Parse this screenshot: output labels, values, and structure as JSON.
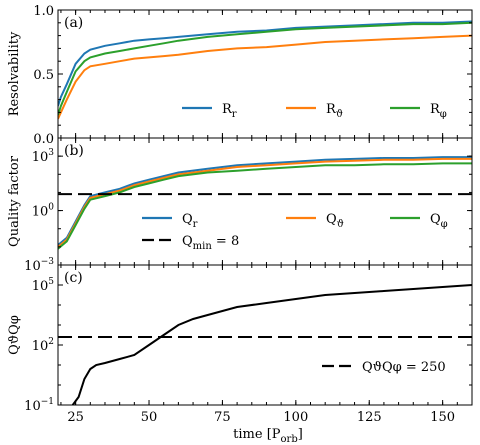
{
  "chart_data": [
    {
      "panel_tag": "(a)",
      "type": "line",
      "ylabel": "Resolvability",
      "xlim": [
        19,
        160
      ],
      "ylim": [
        0.0,
        1.0
      ],
      "yscale": "linear",
      "yticks": [
        0.0,
        0.5,
        1.0
      ],
      "ytick_labels": [
        "0.0",
        "0.5",
        "1.0"
      ],
      "legend_loc": "lower-right",
      "series": [
        {
          "name": "R_r",
          "label": {
            "base": "R",
            "sub": "r"
          },
          "color": "#1f77b4",
          "x": [
            19,
            20,
            22,
            25,
            28,
            30,
            35,
            40,
            45,
            50,
            55,
            60,
            70,
            80,
            90,
            100,
            110,
            120,
            130,
            140,
            150,
            160
          ],
          "y": [
            0.25,
            0.32,
            0.42,
            0.58,
            0.66,
            0.69,
            0.72,
            0.74,
            0.76,
            0.77,
            0.78,
            0.79,
            0.81,
            0.83,
            0.84,
            0.86,
            0.87,
            0.88,
            0.89,
            0.9,
            0.9,
            0.91
          ]
        },
        {
          "name": "R_theta",
          "label": {
            "base": "R",
            "sub": "ϑ"
          },
          "color": "#ff7f0e",
          "x": [
            19,
            20,
            22,
            25,
            28,
            30,
            35,
            40,
            45,
            50,
            55,
            60,
            70,
            80,
            90,
            100,
            110,
            120,
            130,
            140,
            150,
            160
          ],
          "y": [
            0.15,
            0.2,
            0.3,
            0.44,
            0.53,
            0.56,
            0.58,
            0.6,
            0.62,
            0.63,
            0.64,
            0.65,
            0.68,
            0.7,
            0.71,
            0.73,
            0.75,
            0.76,
            0.77,
            0.78,
            0.79,
            0.8
          ]
        },
        {
          "name": "R_phi",
          "label": {
            "base": "R",
            "sub": "φ"
          },
          "color": "#2ca02c",
          "x": [
            19,
            20,
            22,
            25,
            28,
            30,
            35,
            40,
            45,
            50,
            55,
            60,
            70,
            80,
            90,
            100,
            110,
            120,
            130,
            140,
            150,
            160
          ],
          "y": [
            0.18,
            0.25,
            0.36,
            0.52,
            0.6,
            0.63,
            0.66,
            0.68,
            0.7,
            0.72,
            0.74,
            0.76,
            0.79,
            0.81,
            0.83,
            0.85,
            0.86,
            0.87,
            0.88,
            0.89,
            0.89,
            0.9
          ]
        }
      ]
    },
    {
      "panel_tag": "(b)",
      "type": "line",
      "ylabel": "Quality factor",
      "xlim": [
        19,
        160
      ],
      "ylim": [
        -3,
        4
      ],
      "yscale": "log",
      "yticks": [
        -3,
        0,
        3
      ],
      "ytick_labels": [
        {
          "base": "10",
          "exp": "−3"
        },
        {
          "base": "10",
          "exp": "0"
        },
        {
          "base": "10",
          "exp": "3"
        }
      ],
      "legend_loc": "lower-right",
      "series": [
        {
          "name": "Q_r",
          "label": {
            "base": "Q",
            "sub": "r"
          },
          "color": "#1f77b4",
          "x": [
            19,
            22,
            25,
            28,
            30,
            35,
            40,
            45,
            50,
            55,
            60,
            70,
            80,
            90,
            100,
            110,
            120,
            130,
            140,
            150,
            160
          ],
          "y": [
            -1.9,
            -1.5,
            -0.6,
            0.3,
            0.8,
            1.0,
            1.2,
            1.5,
            1.7,
            1.9,
            2.1,
            2.3,
            2.5,
            2.6,
            2.7,
            2.8,
            2.85,
            2.9,
            2.9,
            2.95,
            2.95
          ]
        },
        {
          "name": "Q_theta",
          "label": {
            "base": "Q",
            "sub": "ϑ"
          },
          "color": "#ff7f0e",
          "x": [
            19,
            22,
            25,
            28,
            30,
            35,
            40,
            45,
            50,
            55,
            60,
            70,
            80,
            90,
            100,
            110,
            120,
            130,
            140,
            150,
            160
          ],
          "y": [
            -2.0,
            -1.6,
            -0.7,
            0.2,
            0.7,
            0.9,
            1.1,
            1.4,
            1.6,
            1.8,
            2.0,
            2.2,
            2.4,
            2.5,
            2.6,
            2.7,
            2.75,
            2.8,
            2.8,
            2.85,
            2.85
          ]
        },
        {
          "name": "Q_phi",
          "label": {
            "base": "Q",
            "sub": "φ"
          },
          "color": "#2ca02c",
          "x": [
            19,
            22,
            25,
            28,
            30,
            35,
            40,
            45,
            50,
            55,
            60,
            70,
            80,
            90,
            100,
            110,
            120,
            130,
            140,
            150,
            160
          ],
          "y": [
            -2.1,
            -1.7,
            -0.8,
            0.1,
            0.6,
            0.8,
            1.0,
            1.3,
            1.5,
            1.7,
            1.9,
            2.1,
            2.2,
            2.3,
            2.4,
            2.5,
            2.5,
            2.55,
            2.55,
            2.6,
            2.6
          ]
        }
      ],
      "hlines": [
        {
          "name": "Q_min",
          "label": {
            "base": "Q",
            "sub": "min",
            "suffix": " = 8"
          },
          "y": 0.9031,
          "style": "dashed",
          "color": "#000000"
        }
      ]
    },
    {
      "panel_tag": "(c)",
      "type": "line",
      "ylabel": "QϑQφ",
      "xlabel": "time [P_orb]",
      "xlim": [
        19,
        160
      ],
      "ylim": [
        -1,
        6
      ],
      "yscale": "log",
      "yticks": [
        -1,
        2,
        5
      ],
      "ytick_labels": [
        {
          "base": "10",
          "exp": "−1"
        },
        {
          "base": "10",
          "exp": "2"
        },
        {
          "base": "10",
          "exp": "5"
        }
      ],
      "xticks": [
        25,
        50,
        75,
        100,
        125,
        150
      ],
      "xtick_labels": [
        "25",
        "50",
        "75",
        "100",
        "125",
        "150"
      ],
      "legend_loc": "lower-right",
      "series": [
        {
          "name": "Q_theta_Q_phi",
          "color": "#000000",
          "x": [
            24,
            26,
            28,
            30,
            32,
            35,
            40,
            45,
            50,
            55,
            60,
            65,
            70,
            75,
            80,
            90,
            100,
            110,
            120,
            130,
            140,
            150,
            160
          ],
          "y": [
            -1.0,
            -0.6,
            0.3,
            0.8,
            1.0,
            1.1,
            1.3,
            1.5,
            2.0,
            2.5,
            3.0,
            3.3,
            3.5,
            3.7,
            3.9,
            4.1,
            4.3,
            4.5,
            4.6,
            4.7,
            4.8,
            4.9,
            5.0
          ]
        }
      ],
      "hlines": [
        {
          "name": "QQ_250",
          "label": {
            "base": "QϑQφ",
            "suffix": " = 250"
          },
          "y": 2.398,
          "style": "dashed",
          "color": "#000000"
        }
      ]
    }
  ],
  "xlabel_text": {
    "base": "time [P",
    "sub": "orb",
    "suffix": "]"
  }
}
